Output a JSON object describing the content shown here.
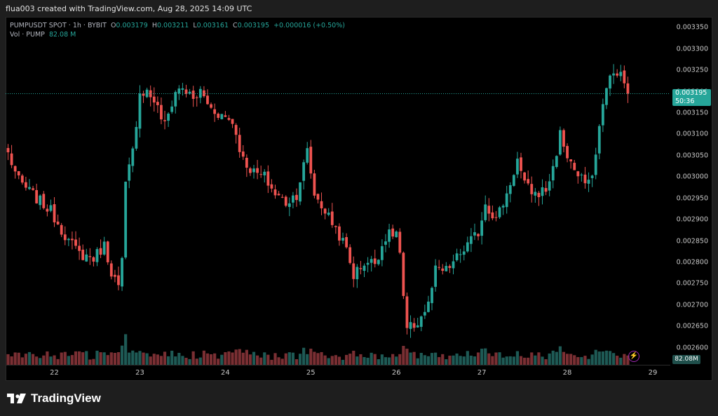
{
  "attribution": "flua003 created with TradingView.com, Aug 28, 2025 14:09 UTC",
  "legend": {
    "symbol": "PUMPUSDT SPOT · 1h · BYBIT",
    "o_key": "O",
    "o_val": "0.003179",
    "h_key": "H",
    "h_val": "0.003211",
    "l_key": "L",
    "l_val": "0.003161",
    "c_key": "C",
    "c_val": "0.003195",
    "change": "+0.000016 (+0.50%)",
    "vol_key": "Vol · PUMP",
    "vol_val": "82.08 M"
  },
  "last_price": "0.003195",
  "countdown": "50:36",
  "volume_badge": "82.08M",
  "brand": "TradingView",
  "colors": {
    "up": "#26a69a",
    "down": "#ef5350",
    "up_vol": "#1e5a55",
    "down_vol": "#7a2f33",
    "background": "#000000"
  },
  "icons": {
    "logo": "tradingview-logo-icon",
    "bolt": "lightning-icon"
  },
  "chart_data": {
    "type": "candlestick",
    "title": "PUMPUSDT SPOT · 1h · BYBIT",
    "ylim": [
      0.00256,
      0.003375
    ],
    "y_ticks": [
      "0.003350",
      "0.003300",
      "0.003250",
      "0.003200",
      "0.003150",
      "0.003100",
      "0.003050",
      "0.003000",
      "0.002950",
      "0.002900",
      "0.002850",
      "0.002800",
      "0.002750",
      "0.002700",
      "0.002650",
      "0.002600"
    ],
    "x_ticks": [
      "22",
      "23",
      "24",
      "25",
      "26",
      "27",
      "28",
      "29"
    ],
    "x_tick_hour_index": [
      13,
      37,
      61,
      85,
      109,
      133,
      157,
      181
    ],
    "last_close": 0.003195,
    "keypoints": [
      [
        0,
        0.003055
      ],
      [
        3,
        0.00299
      ],
      [
        8,
        0.00295
      ],
      [
        12,
        0.00292
      ],
      [
        17,
        0.00285
      ],
      [
        20,
        0.00282
      ],
      [
        24,
        0.00281
      ],
      [
        27,
        0.00284
      ],
      [
        29,
        0.00278
      ],
      [
        31,
        0.00274
      ],
      [
        32,
        0.0028
      ],
      [
        33,
        0.00298
      ],
      [
        35,
        0.00306
      ],
      [
        37,
        0.0032
      ],
      [
        39,
        0.0032
      ],
      [
        41,
        0.00318
      ],
      [
        44,
        0.00312
      ],
      [
        47,
        0.0032
      ],
      [
        49,
        0.00321
      ],
      [
        52,
        0.00318
      ],
      [
        54,
        0.0032
      ],
      [
        57,
        0.00316
      ],
      [
        61,
        0.00314
      ],
      [
        63,
        0.00313
      ],
      [
        66,
        0.00304
      ],
      [
        69,
        0.00301
      ],
      [
        72,
        0.003
      ],
      [
        75,
        0.00296
      ],
      [
        78,
        0.00294
      ],
      [
        81,
        0.00296
      ],
      [
        84,
        0.00306
      ],
      [
        86,
        0.00296
      ],
      [
        89,
        0.00292
      ],
      [
        92,
        0.00288
      ],
      [
        95,
        0.00283
      ],
      [
        97,
        0.00277
      ],
      [
        100,
        0.0028
      ],
      [
        103,
        0.0028
      ],
      [
        106,
        0.00286
      ],
      [
        109,
        0.00287
      ],
      [
        110,
        0.00282
      ],
      [
        111,
        0.00271
      ],
      [
        112,
        0.00264
      ],
      [
        115,
        0.00266
      ],
      [
        118,
        0.0027
      ],
      [
        120,
        0.00278
      ],
      [
        123,
        0.00278
      ],
      [
        126,
        0.00281
      ],
      [
        129,
        0.00284
      ],
      [
        132,
        0.00287
      ],
      [
        134,
        0.00294
      ],
      [
        137,
        0.0029
      ],
      [
        140,
        0.00296
      ],
      [
        143,
        0.00304
      ],
      [
        145,
        0.00298
      ],
      [
        148,
        0.00296
      ],
      [
        151,
        0.00297
      ],
      [
        153,
        0.00302
      ],
      [
        155,
        0.0031
      ],
      [
        157,
        0.00305
      ],
      [
        160,
        0.003
      ],
      [
        163,
        0.00298
      ],
      [
        165,
        0.00305
      ],
      [
        167,
        0.00318
      ],
      [
        169,
        0.00323
      ],
      [
        171,
        0.00325
      ],
      [
        173,
        0.00322
      ],
      [
        174,
        0.003195
      ]
    ]
  }
}
